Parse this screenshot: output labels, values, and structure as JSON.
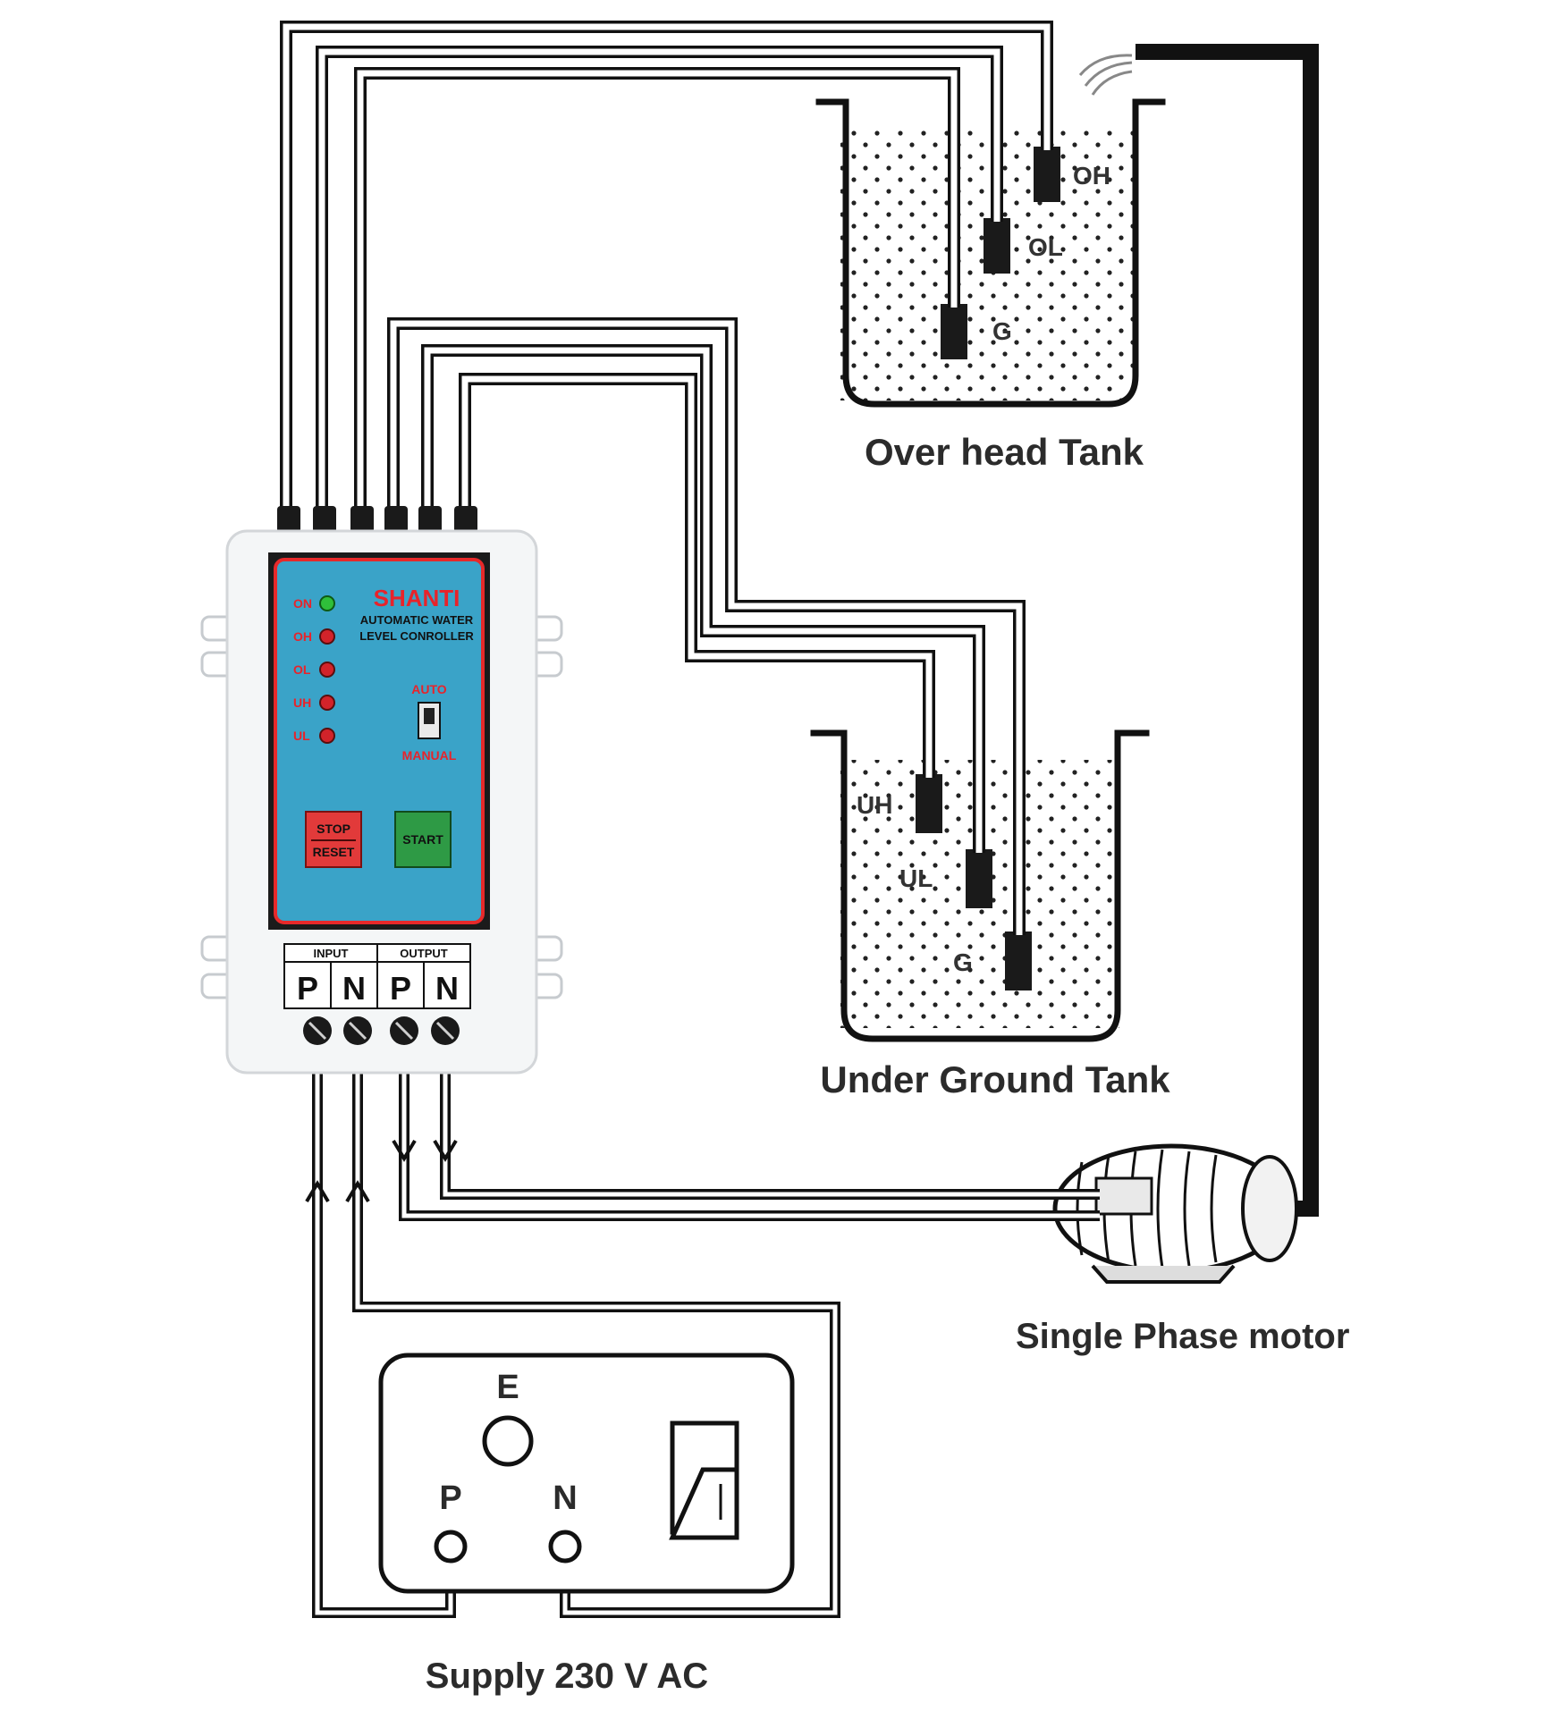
{
  "colors": {
    "wire": "#111111",
    "panel_blue": "#3aa3c8",
    "panel_border": "#e7292a",
    "brand_red": "#e8232a",
    "led_green": "#2fbf3a",
    "led_red": "#d2232a",
    "stop_button": "#e23a3a",
    "start_button": "#2e9a45",
    "enclosure": "#f4f6f7"
  },
  "controller": {
    "brand": "SHANTI",
    "subtitle_line1": "AUTOMATIC WATER",
    "subtitle_line2": "LEVEL CONROLLER",
    "indicators": [
      {
        "label": "ON",
        "state": "green",
        "icon": "led-green-icon"
      },
      {
        "label": "OH",
        "state": "red",
        "icon": "led-red-icon"
      },
      {
        "label": "OL",
        "state": "red",
        "icon": "led-red-icon"
      },
      {
        "label": "UH",
        "state": "red",
        "icon": "led-red-icon"
      },
      {
        "label": "UL",
        "state": "red",
        "icon": "led-red-icon"
      }
    ],
    "mode_switch": {
      "top_label": "AUTO",
      "bottom_label": "MANUAL"
    },
    "stop_button": {
      "line1": "STOP",
      "line2": "RESET"
    },
    "start_button": {
      "label": "START"
    },
    "terminal_headers": {
      "input": "INPUT",
      "output": "OUTPUT"
    },
    "terminals": [
      "P",
      "N",
      "P",
      "N"
    ]
  },
  "overhead_tank": {
    "caption": "Over head Tank",
    "probes": [
      "OH",
      "OL",
      "G"
    ]
  },
  "underground_tank": {
    "caption": "Under Ground Tank",
    "probes": [
      "UH",
      "UL",
      "G"
    ]
  },
  "motor": {
    "caption": "Single Phase motor"
  },
  "supply": {
    "caption": "Supply 230 V AC",
    "socket_labels": {
      "earth": "E",
      "phase": "P",
      "neutral": "N"
    }
  }
}
